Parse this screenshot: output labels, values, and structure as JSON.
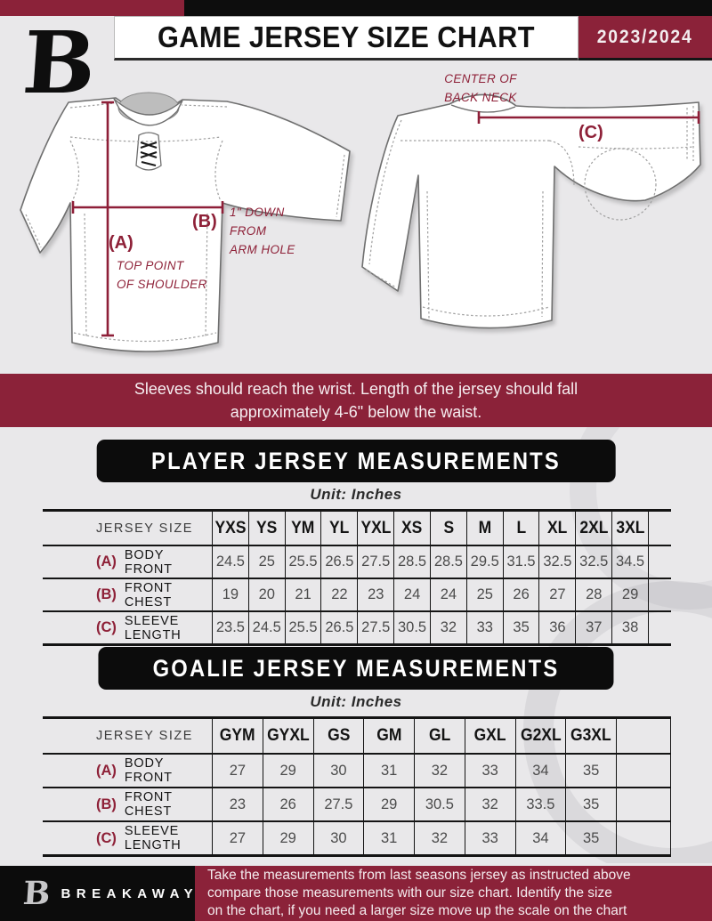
{
  "colors": {
    "maroon": "#8b2239",
    "black": "#0d0d0d",
    "background": "#e9e8ea"
  },
  "header": {
    "logo_letter": "B",
    "title": "GAME JERSEY SIZE CHART",
    "season": "2023/2024"
  },
  "diagram": {
    "front": {
      "a_key": "(A)",
      "a_note_line1": "TOP POINT",
      "a_note_line2": "OF SHOULDER",
      "b_key": "(B)",
      "b_note_line1": "1\" DOWN",
      "b_note_line2": "FROM",
      "b_note_line3": "ARM HOLE"
    },
    "back": {
      "c_key": "(C)",
      "neck_note_line1": "CENTER OF",
      "neck_note_line2": "BACK NECK"
    }
  },
  "banner": {
    "line1": "Sleeves should reach the wrist. Length of the jersey should fall",
    "line2": "approximately 4-6\" below the waist."
  },
  "player_table": {
    "section_title": "PLAYER JERSEY MEASUREMENTS",
    "unit": "Unit: Inches",
    "corner": "JERSEY SIZE",
    "sizes": [
      "YXS",
      "YS",
      "YM",
      "YL",
      "YXL",
      "XS",
      "S",
      "M",
      "L",
      "XL",
      "2XL",
      "3XL"
    ],
    "rows": [
      {
        "key": "(A)",
        "label": "BODY FRONT",
        "values": [
          "24.5",
          "25",
          "25.5",
          "26.5",
          "27.5",
          "28.5",
          "28.5",
          "29.5",
          "31.5",
          "32.5",
          "32.5",
          "34.5"
        ]
      },
      {
        "key": "(B)",
        "label": "FRONT CHEST",
        "values": [
          "19",
          "20",
          "21",
          "22",
          "23",
          "24",
          "24",
          "25",
          "26",
          "27",
          "28",
          "29"
        ]
      },
      {
        "key": "(C)",
        "label": "SLEEVE LENGTH",
        "values": [
          "23.5",
          "24.5",
          "25.5",
          "26.5",
          "27.5",
          "30.5",
          "32",
          "33",
          "35",
          "36",
          "37",
          "38"
        ]
      }
    ]
  },
  "goalie_table": {
    "section_title": "GOALIE JERSEY MEASUREMENTS",
    "unit": "Unit: Inches",
    "corner": "JERSEY SIZE",
    "sizes": [
      "GYM",
      "GYXL",
      "GS",
      "GM",
      "GL",
      "GXL",
      "G2XL",
      "G3XL"
    ],
    "rows": [
      {
        "key": "(A)",
        "label": "BODY FRONT",
        "values": [
          "27",
          "29",
          "30",
          "31",
          "32",
          "33",
          "34",
          "35"
        ]
      },
      {
        "key": "(B)",
        "label": "FRONT CHEST",
        "values": [
          "23",
          "26",
          "27.5",
          "29",
          "30.5",
          "32",
          "33.5",
          "35"
        ]
      },
      {
        "key": "(C)",
        "label": "SLEEVE LENGTH",
        "values": [
          "27",
          "29",
          "30",
          "31",
          "32",
          "33",
          "34",
          "35"
        ]
      }
    ]
  },
  "footer": {
    "logo_letter": "B",
    "brand": "BREAKAWAY",
    "line1": "Take the measurements from last seasons jersey as instructed above",
    "line2": "compare those measurements  with our size chart. Identify the size",
    "line3": "on the chart, if you need a larger size move up the scale on the chart"
  }
}
